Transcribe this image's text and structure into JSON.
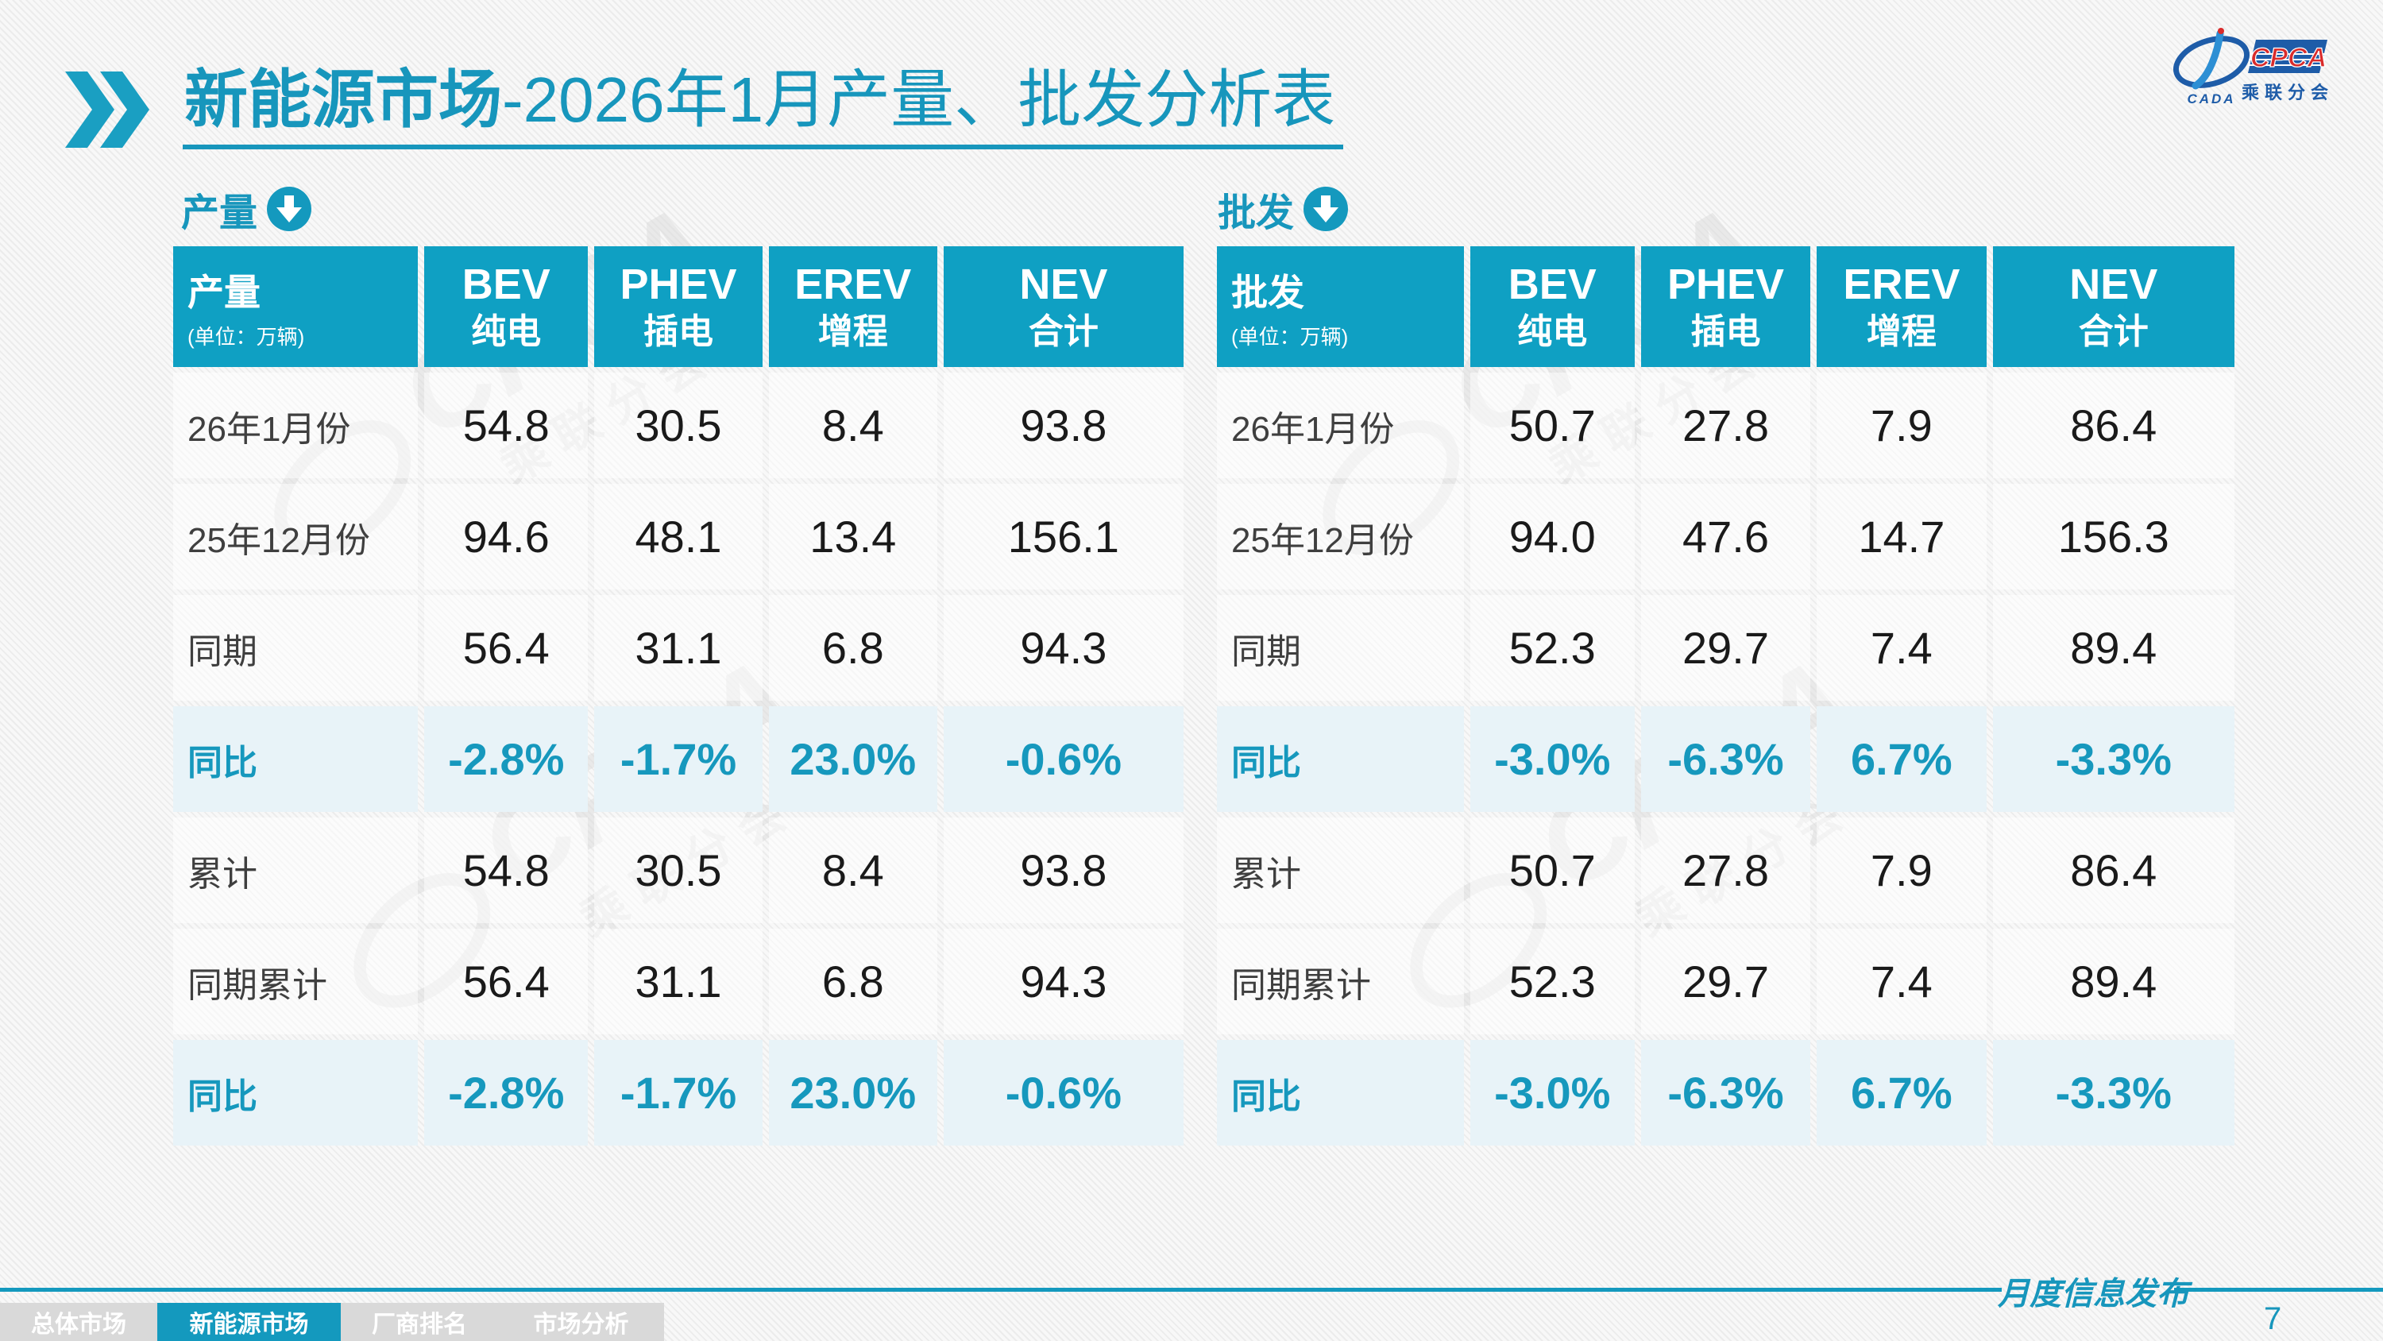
{
  "title": {
    "bold": "新能源市场",
    "rest": "-2026年1月产量、批发分析表"
  },
  "logo": {
    "cpca": "CPCA",
    "cada": "CADA",
    "sub": "乘联分会"
  },
  "production": {
    "section_label": "产量",
    "header": {
      "title": "产量",
      "unit": "(单位：万辆)",
      "cols": [
        [
          "BEV",
          "纯电"
        ],
        [
          "PHEV",
          "插电"
        ],
        [
          "EREV",
          "增程"
        ],
        [
          "NEV",
          "合计"
        ]
      ]
    },
    "rows": [
      {
        "label": "26年1月份",
        "values": [
          "54.8",
          "30.5",
          "8.4",
          "93.8"
        ],
        "highlight": false
      },
      {
        "label": "25年12月份",
        "values": [
          "94.6",
          "48.1",
          "13.4",
          "156.1"
        ],
        "highlight": false
      },
      {
        "label": "同期",
        "values": [
          "56.4",
          "31.1",
          "6.8",
          "94.3"
        ],
        "highlight": false
      },
      {
        "label": "同比",
        "values": [
          "-2.8%",
          "-1.7%",
          "23.0%",
          "-0.6%"
        ],
        "highlight": true
      },
      {
        "label": "累计",
        "values": [
          "54.8",
          "30.5",
          "8.4",
          "93.8"
        ],
        "highlight": false
      },
      {
        "label": "同期累计",
        "values": [
          "56.4",
          "31.1",
          "6.8",
          "94.3"
        ],
        "highlight": false
      },
      {
        "label": "同比",
        "values": [
          "-2.8%",
          "-1.7%",
          "23.0%",
          "-0.6%"
        ],
        "highlight": true
      }
    ]
  },
  "wholesale": {
    "section_label": "批发",
    "header": {
      "title": "批发",
      "unit": "(单位：万辆)",
      "cols": [
        [
          "BEV",
          "纯电"
        ],
        [
          "PHEV",
          "插电"
        ],
        [
          "EREV",
          "增程"
        ],
        [
          "NEV",
          "合计"
        ]
      ]
    },
    "rows": [
      {
        "label": "26年1月份",
        "values": [
          "50.7",
          "27.8",
          "7.9",
          "86.4"
        ],
        "highlight": false
      },
      {
        "label": "25年12月份",
        "values": [
          "94.0",
          "47.6",
          "14.7",
          "156.3"
        ],
        "highlight": false
      },
      {
        "label": "同期",
        "values": [
          "52.3",
          "29.7",
          "7.4",
          "89.4"
        ],
        "highlight": false
      },
      {
        "label": "同比",
        "values": [
          "-3.0%",
          "-6.3%",
          "6.7%",
          "-3.3%"
        ],
        "highlight": true
      },
      {
        "label": "累计",
        "values": [
          "50.7",
          "27.8",
          "7.9",
          "86.4"
        ],
        "highlight": false
      },
      {
        "label": "同期累计",
        "values": [
          "52.3",
          "29.7",
          "7.4",
          "89.4"
        ],
        "highlight": false
      },
      {
        "label": "同比",
        "values": [
          "-3.0%",
          "-6.3%",
          "6.7%",
          "-3.3%"
        ],
        "highlight": true
      }
    ]
  },
  "nav": {
    "tabs": [
      {
        "label": "总体市场",
        "active": false
      },
      {
        "label": "新能源市场",
        "active": true
      },
      {
        "label": "厂商排名",
        "active": false
      },
      {
        "label": "市场分析",
        "active": false
      }
    ]
  },
  "footer": {
    "publication": "月度信息发布",
    "page": "7"
  },
  "colors": {
    "teal": "#1796BC",
    "header_teal": "#0FA0C3",
    "highlight_row_bg": "#E8F3F8",
    "highlight_text": "#1698BD",
    "nav_gray": "#D9D9D9",
    "logo_blue": "#1E5CA8",
    "logo_red": "#D92B2B",
    "watermark_gray": "#D9D9D9"
  },
  "chart_data": [
    {
      "type": "table",
      "title": "产量 (单位：万辆)",
      "columns": [
        "产量",
        "BEV 纯电",
        "PHEV 插电",
        "EREV 增程",
        "NEV 合计"
      ],
      "rows": [
        [
          "26年1月份",
          54.8,
          30.5,
          8.4,
          93.8
        ],
        [
          "25年12月份",
          94.6,
          48.1,
          13.4,
          156.1
        ],
        [
          "同期",
          56.4,
          31.1,
          6.8,
          94.3
        ],
        [
          "同比",
          "-2.8%",
          "-1.7%",
          "23.0%",
          "-0.6%"
        ],
        [
          "累计",
          54.8,
          30.5,
          8.4,
          93.8
        ],
        [
          "同期累计",
          56.4,
          31.1,
          6.8,
          94.3
        ],
        [
          "同比",
          "-2.8%",
          "-1.7%",
          "23.0%",
          "-0.6%"
        ]
      ]
    },
    {
      "type": "table",
      "title": "批发 (单位：万辆)",
      "columns": [
        "批发",
        "BEV 纯电",
        "PHEV 插电",
        "EREV 增程",
        "NEV 合计"
      ],
      "rows": [
        [
          "26年1月份",
          50.7,
          27.8,
          7.9,
          86.4
        ],
        [
          "25年12月份",
          94.0,
          47.6,
          14.7,
          156.3
        ],
        [
          "同期",
          52.3,
          29.7,
          7.4,
          89.4
        ],
        [
          "同比",
          "-3.0%",
          "-6.3%",
          "6.7%",
          "-3.3%"
        ],
        [
          "累计",
          50.7,
          27.8,
          7.9,
          86.4
        ],
        [
          "同期累计",
          52.3,
          29.7,
          7.4,
          89.4
        ],
        [
          "同比",
          "-3.0%",
          "-6.3%",
          "6.7%",
          "-3.3%"
        ]
      ]
    }
  ]
}
